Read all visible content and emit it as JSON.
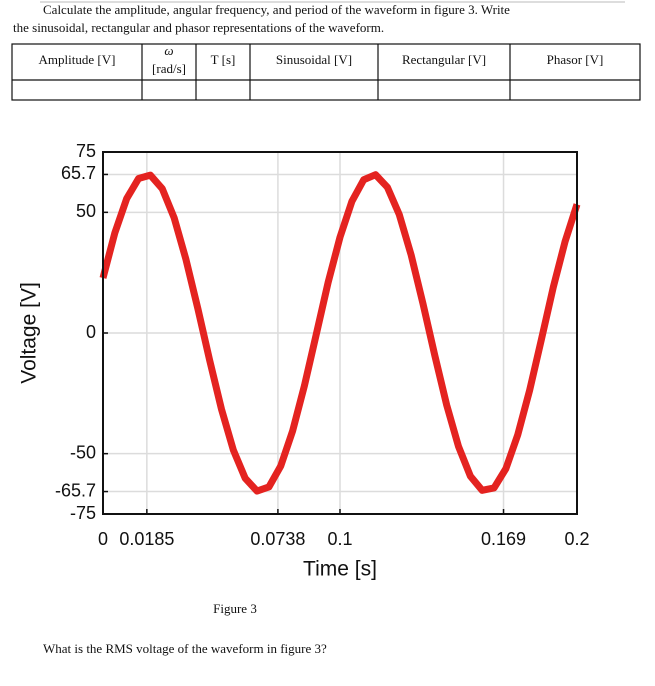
{
  "document": {
    "prompt": [
      "Calculate the amplitude, angular frequency, and period of the waveform in figure 3. Write",
      "the sinusoidal, rectangular and phasor representations of the waveform."
    ],
    "table": {
      "header": [
        [
          "Amplitude [V]"
        ],
        [
          "ω",
          "[rad/s]"
        ],
        [
          "T [s]"
        ],
        [
          "Sinusoidal [V]"
        ],
        [
          "Rectangular [V]"
        ],
        [
          "Phasor [V]"
        ]
      ]
    },
    "figure_caption": "Figure 3",
    "question": "What is the RMS voltage of the waveform in figure 3?"
  },
  "chart_data": {
    "type": "line",
    "xlabel": "Time [s]",
    "ylabel": "Voltage [V]",
    "x": [
      0,
      0.005,
      0.01,
      0.015,
      0.02,
      0.025,
      0.03,
      0.035,
      0.04,
      0.045,
      0.05,
      0.055,
      0.06,
      0.065,
      0.07,
      0.075,
      0.08,
      0.085,
      0.09,
      0.095,
      0.1,
      0.105,
      0.11,
      0.115,
      0.12,
      0.125,
      0.13,
      0.135,
      0.14,
      0.145,
      0.15,
      0.155,
      0.16,
      0.165,
      0.17,
      0.175,
      0.18,
      0.185,
      0.19,
      0.195,
      0.2
    ],
    "series": [
      {
        "name": "Voltage",
        "color": "#e42320",
        "values": [
          22.8,
          41.5,
          55.7,
          64.0,
          65.4,
          59.8,
          47.8,
          30.5,
          10.2,
          -11.3,
          -31.6,
          -48.5,
          -60.2,
          -65.5,
          -63.8,
          -55.1,
          -40.6,
          -21.8,
          -0.5,
          21.0,
          39.7,
          54.5,
          63.5,
          65.6,
          60.4,
          49.1,
          32.4,
          12.2,
          -9.3,
          -29.8,
          -47.0,
          -59.3,
          -65.2,
          -64.2,
          -56.2,
          -42.2,
          -23.8,
          -2.6,
          19.0,
          38.0,
          53.3
        ]
      }
    ],
    "xlim": [
      0,
      0.2
    ],
    "ylim": [
      -75,
      75
    ],
    "xticks": [
      0,
      0.0185,
      0.0738,
      0.1,
      0.169,
      0.2
    ],
    "yticks": [
      75,
      65.7,
      50,
      0,
      -50,
      -65.7,
      -75
    ],
    "grid": true
  }
}
